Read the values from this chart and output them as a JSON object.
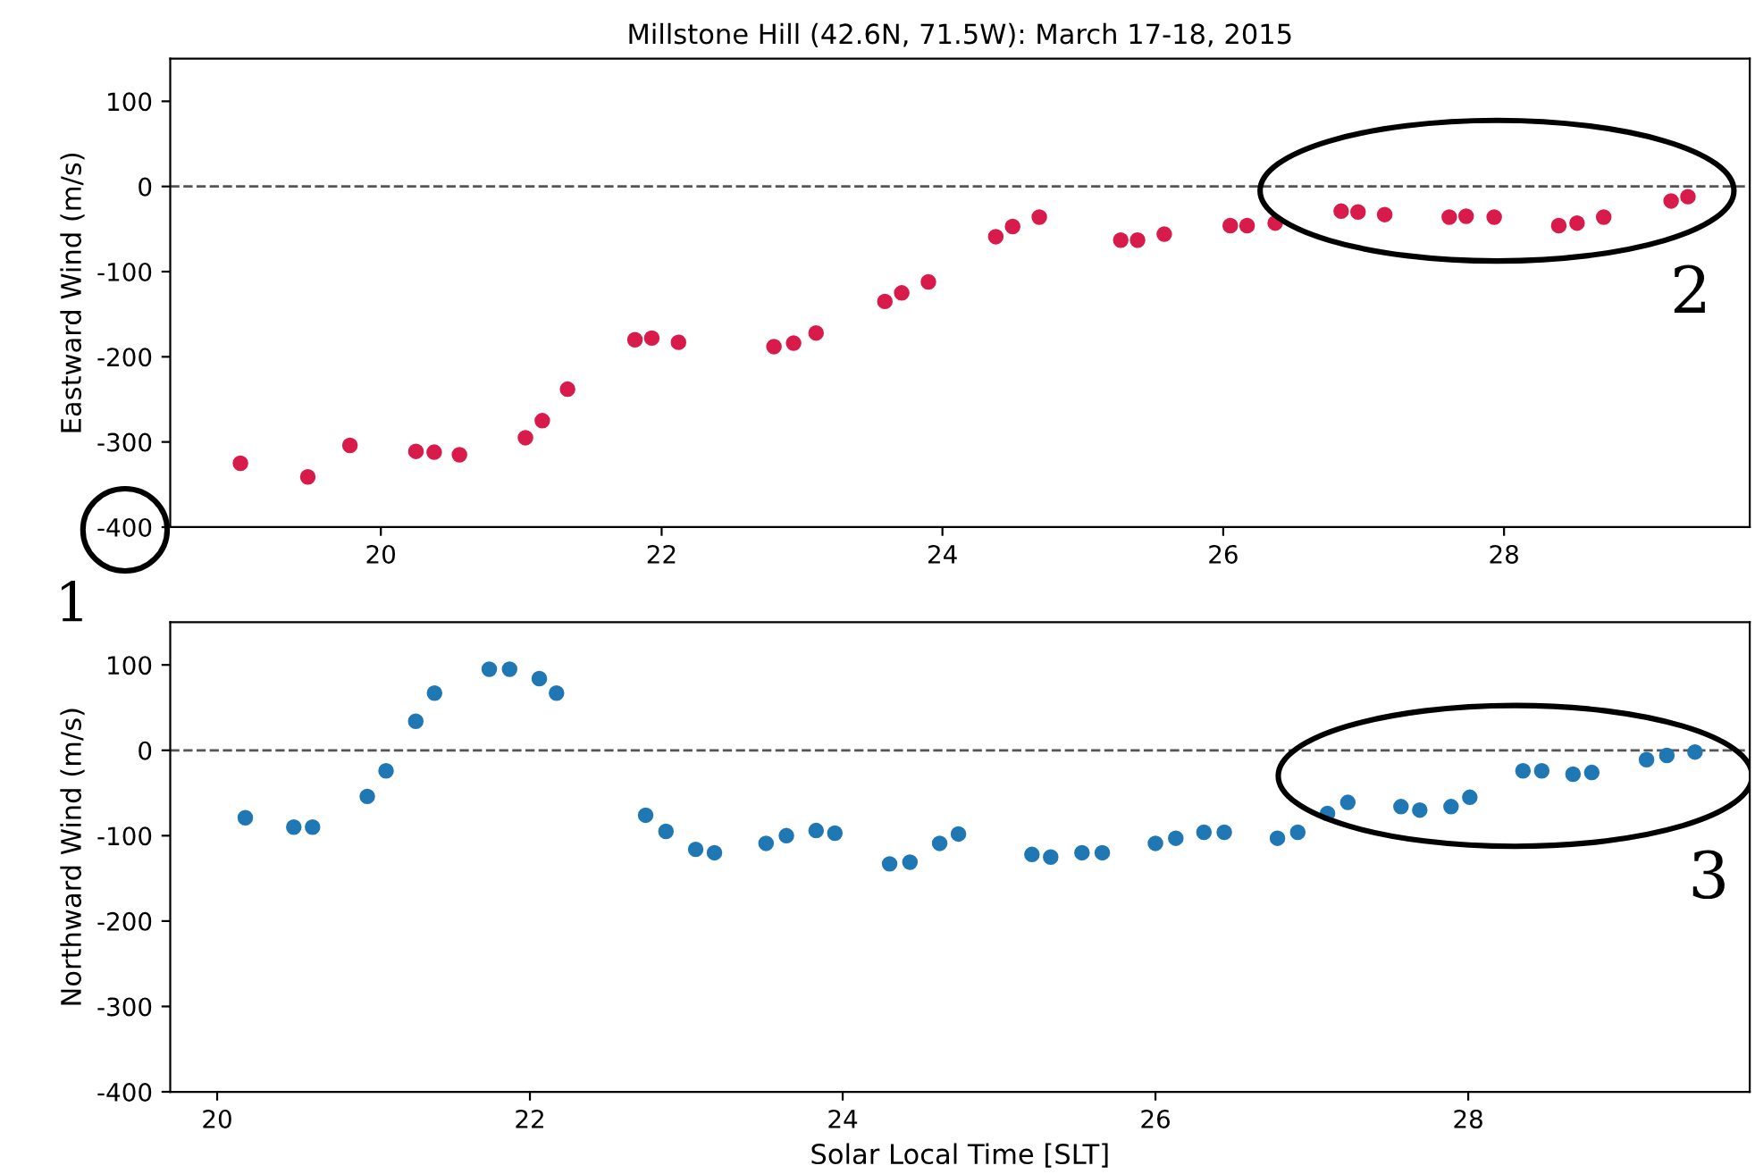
{
  "chart_data": [
    {
      "type": "scatter",
      "title": "Millstone Hill (42.6N, 71.5W): March 17-18, 2015",
      "ylabel": "Eastward Wind (m/s)",
      "series": [
        {
          "color": "#d81b4a",
          "x": [
            19.0,
            19.48,
            19.78,
            20.25,
            20.38,
            20.56,
            21.03,
            21.15,
            21.33,
            21.81,
            21.93,
            22.12,
            22.8,
            22.94,
            23.1,
            23.59,
            23.71,
            23.9,
            24.38,
            24.5,
            24.69,
            25.27,
            25.39,
            25.58,
            26.05,
            26.17,
            26.37,
            26.84,
            26.96,
            27.15,
            27.61,
            27.73,
            27.93,
            28.39,
            28.52,
            28.71,
            29.19,
            29.31
          ],
          "values": [
            -325,
            -341,
            -304,
            -311,
            -312,
            -315,
            -295,
            -275,
            -238,
            -180,
            -178,
            -183,
            -188,
            -184,
            -172,
            -135,
            -125,
            -112,
            -59,
            -47,
            -36,
            -63,
            -63,
            -56,
            -46,
            -46,
            -43,
            -29,
            -30,
            -33,
            -36,
            -35,
            -36,
            -46,
            -43,
            -36,
            -17,
            -12
          ]
        }
      ],
      "xlim": [
        18.5,
        29.75
      ],
      "ylim": [
        -400,
        150
      ],
      "xticks": [
        20,
        22,
        24,
        26,
        28
      ],
      "yticks": [
        -400,
        -300,
        -200,
        -100,
        0,
        100
      ],
      "marker": "circle",
      "ref_lines": [
        {
          "axis": "y",
          "value": 0,
          "color": "#555555",
          "line_style": "dashed"
        }
      ],
      "annotations": [
        "1",
        {
          "text": "2",
          "x": 27.95,
          "y": -5
        }
      ]
    },
    {
      "type": "scatter",
      "xlabel": "Solar Local Time [SLT]",
      "ylabel": "Northward Wind (m/s)",
      "series": [
        {
          "color": "#1f77b4",
          "x": [
            20.18,
            20.49,
            20.61,
            20.96,
            21.08,
            21.27,
            21.39,
            21.74,
            21.87,
            22.06,
            22.17,
            22.74,
            22.87,
            23.06,
            23.18,
            23.51,
            23.64,
            23.83,
            23.95,
            24.3,
            24.43,
            24.62,
            24.74,
            25.21,
            25.33,
            25.53,
            25.66,
            26.0,
            26.13,
            26.31,
            26.44,
            26.78,
            26.91,
            27.1,
            27.23,
            27.57,
            27.69,
            27.89,
            28.01,
            28.35,
            28.47,
            28.67,
            28.79,
            29.14,
            29.27,
            29.45
          ],
          "values": [
            -79,
            -90,
            -90,
            -54,
            -24,
            34,
            67,
            95,
            95,
            84,
            67,
            -76,
            -95,
            -116,
            -120,
            -109,
            -100,
            -94,
            -97,
            -133,
            -131,
            -109,
            -98,
            -122,
            -125,
            -120,
            -120,
            -109,
            -103,
            -96,
            -96,
            -103,
            -96,
            -74,
            -61,
            -66,
            -70,
            -66,
            -55,
            -24,
            -24,
            -28,
            -26,
            -11,
            -6,
            -2
          ]
        }
      ],
      "xlim": [
        19.7,
        29.8
      ],
      "ylim": [
        -400,
        150
      ],
      "xticks": [
        20,
        22,
        24,
        26,
        28
      ],
      "yticks": [
        -400,
        -300,
        -200,
        -100,
        0,
        100
      ],
      "marker": "circle",
      "ref_lines": [
        {
          "axis": "y",
          "value": 0,
          "color": "#555555",
          "line_style": "dashed"
        }
      ],
      "annotations": [
        {
          "text": "3",
          "x": 28.3,
          "y": -30
        }
      ]
    }
  ]
}
